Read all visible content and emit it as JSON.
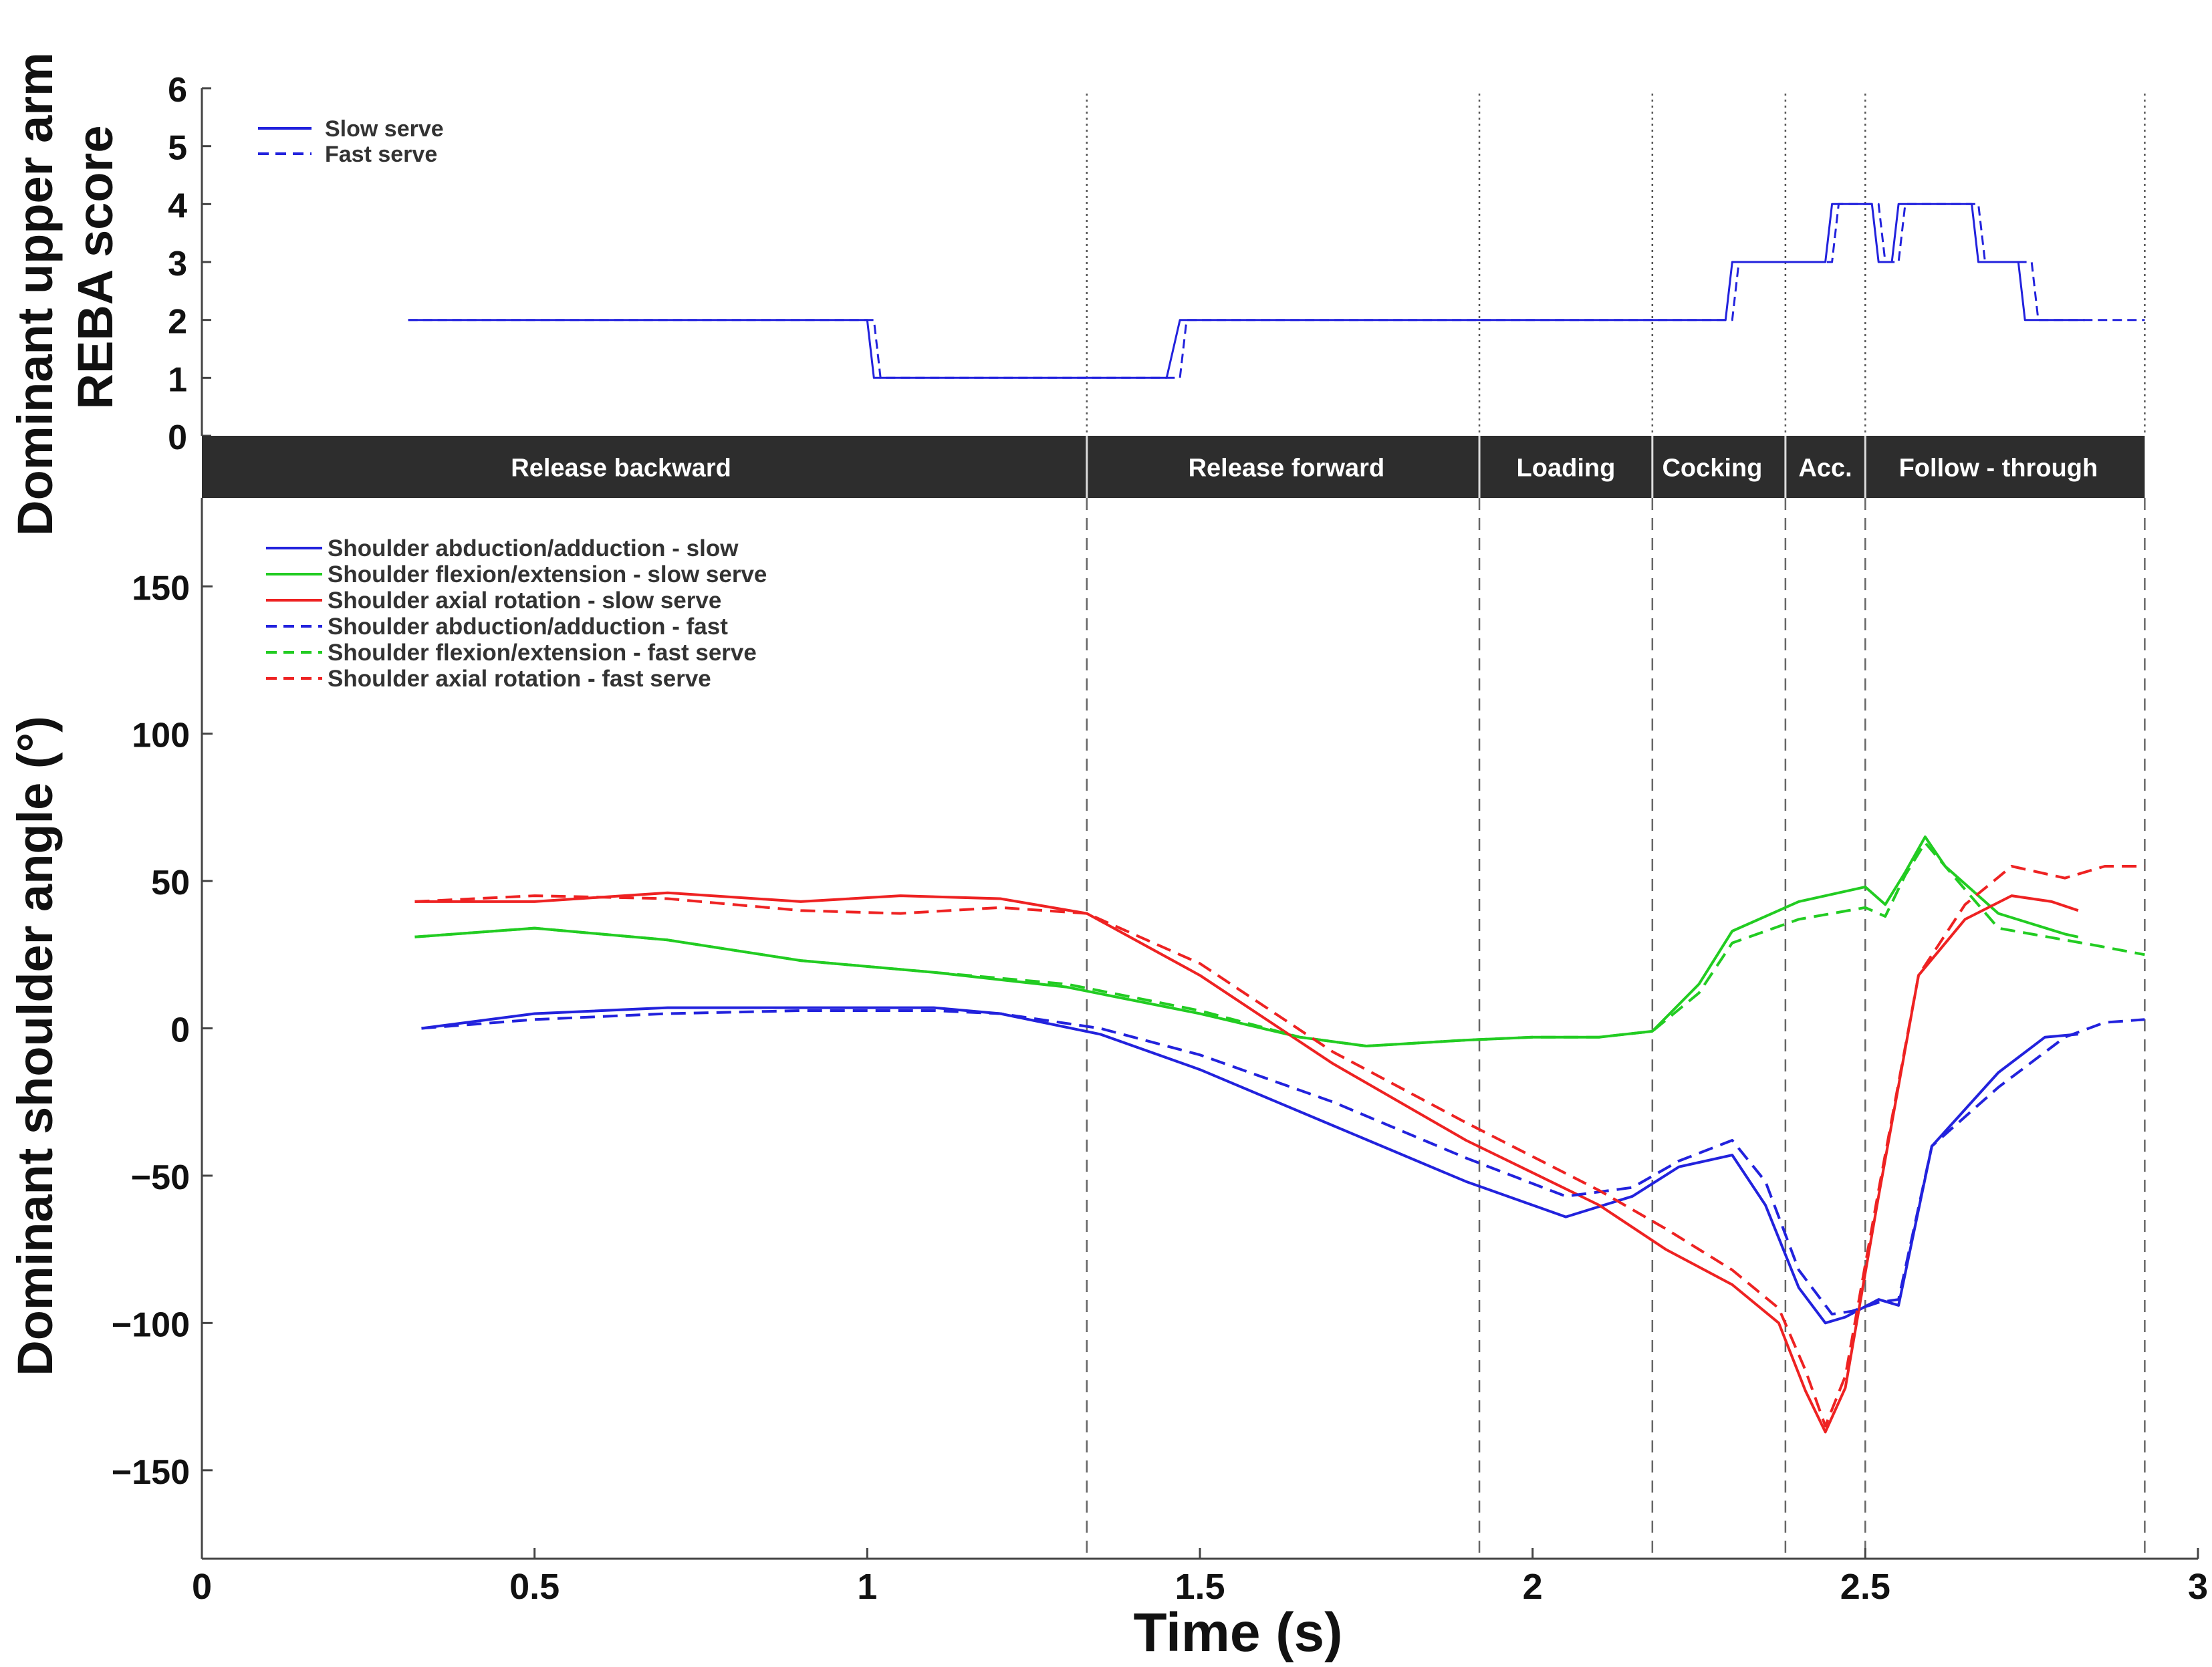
{
  "chart_data": [
    {
      "type": "line",
      "panel": "top",
      "ylabel_line1": "Dominant upper arm",
      "ylabel_line2": "REBA score",
      "ylim": [
        0,
        6
      ],
      "yticks": [
        "0",
        "1",
        "2",
        "3",
        "4",
        "5",
        "6"
      ],
      "series": [
        {
          "name": "Slow serve",
          "color": "#2222dd",
          "dash": false,
          "x": [
            0.31,
            1.0,
            1.01,
            1.03,
            1.45,
            1.47,
            2.29,
            2.3,
            2.44,
            2.45,
            2.51,
            2.52,
            2.54,
            2.55,
            2.66,
            2.67,
            2.73,
            2.74,
            2.83
          ],
          "y": [
            2,
            2,
            1,
            1,
            1,
            2,
            2,
            3,
            3,
            4,
            4,
            3,
            3,
            4,
            4,
            3,
            3,
            2,
            2
          ]
        },
        {
          "name": "Fast serve",
          "color": "#2222dd",
          "dash": true,
          "x": [
            0.31,
            1.01,
            1.02,
            1.04,
            1.47,
            1.48,
            2.3,
            2.31,
            2.45,
            2.46,
            2.52,
            2.53,
            2.55,
            2.56,
            2.67,
            2.68,
            2.75,
            2.76,
            2.92
          ],
          "y": [
            2,
            2,
            1,
            1,
            1,
            2,
            2,
            3,
            3,
            4,
            4,
            3,
            3,
            4,
            4,
            3,
            3,
            2,
            2
          ]
        }
      ]
    },
    {
      "type": "line",
      "panel": "bottom",
      "xlabel": "Time (s)",
      "ylabel": "Dominant shoulder angle   (°)",
      "xlim": [
        0,
        3
      ],
      "ylim": [
        -180,
        180
      ],
      "xticks": [
        "0",
        "0.5",
        "1",
        "1.5",
        "2",
        "2.5",
        "3"
      ],
      "yticks": [
        "150",
        "100",
        "50",
        "0",
        "−50",
        "−100",
        "−150"
      ],
      "series": [
        {
          "name": "Shoulder abduction/adduction - slow",
          "color": "#2222dd",
          "dash": false,
          "x": [
            0.33,
            0.5,
            0.7,
            0.9,
            1.1,
            1.2,
            1.35,
            1.5,
            1.7,
            1.9,
            2.05,
            2.15,
            2.22,
            2.3,
            2.35,
            2.4,
            2.44,
            2.47,
            2.52,
            2.55,
            2.6,
            2.7,
            2.77,
            2.82
          ],
          "y": [
            0,
            5,
            7,
            7,
            7,
            5,
            -2,
            -14,
            -33,
            -52,
            -64,
            -57,
            -47,
            -43,
            -60,
            -88,
            -100,
            -98,
            -92,
            -94,
            -40,
            -15,
            -3,
            -2
          ]
        },
        {
          "name": "Shoulder flexion/extension - slow serve",
          "color": "#22cc22",
          "dash": false,
          "x": [
            0.32,
            0.5,
            0.7,
            0.9,
            1.1,
            1.3,
            1.5,
            1.65,
            1.75,
            1.9,
            2.0,
            2.1,
            2.18,
            2.25,
            2.3,
            2.4,
            2.5,
            2.53,
            2.56,
            2.59,
            2.62,
            2.7,
            2.8,
            2.82
          ],
          "y": [
            31,
            34,
            30,
            23,
            19,
            14,
            5,
            -3,
            -6,
            -4,
            -3,
            -3,
            -1,
            15,
            33,
            43,
            48,
            42,
            53,
            65,
            55,
            39,
            32,
            31
          ]
        },
        {
          "name": "Shoulder axial rotation - slow serve",
          "color": "#ee2222",
          "dash": false,
          "x": [
            0.32,
            0.5,
            0.7,
            0.9,
            1.05,
            1.2,
            1.33,
            1.5,
            1.7,
            1.9,
            2.1,
            2.2,
            2.3,
            2.37,
            2.41,
            2.44,
            2.47,
            2.52,
            2.58,
            2.65,
            2.72,
            2.78,
            2.82
          ],
          "y": [
            43,
            43,
            46,
            43,
            45,
            44,
            39,
            18,
            -12,
            -38,
            -60,
            -75,
            -87,
            -100,
            -123,
            -137,
            -122,
            -57,
            18,
            37,
            45,
            43,
            40
          ]
        },
        {
          "name": "Shoulder abduction/adduction - fast",
          "color": "#2222dd",
          "dash": true,
          "x": [
            0.33,
            0.5,
            0.7,
            0.9,
            1.1,
            1.2,
            1.35,
            1.5,
            1.7,
            1.9,
            2.05,
            2.15,
            2.22,
            2.3,
            2.35,
            2.4,
            2.45,
            2.48,
            2.52,
            2.55,
            2.6,
            2.7,
            2.8,
            2.86,
            2.92
          ],
          "y": [
            0,
            3,
            5,
            6,
            6,
            5,
            0,
            -9,
            -25,
            -44,
            -57,
            -54,
            -45,
            -38,
            -52,
            -82,
            -97,
            -96,
            -93,
            -92,
            -40,
            -20,
            -3,
            2,
            3
          ]
        },
        {
          "name": "Shoulder flexion/extension - fast serve",
          "color": "#22cc22",
          "dash": true,
          "x": [
            0.32,
            0.5,
            0.7,
            0.9,
            1.1,
            1.3,
            1.5,
            1.65,
            1.75,
            1.9,
            2.0,
            2.1,
            2.18,
            2.25,
            2.3,
            2.4,
            2.5,
            2.53,
            2.56,
            2.59,
            2.62,
            2.7,
            2.85,
            2.92
          ],
          "y": [
            31,
            34,
            30,
            23,
            19,
            15,
            6,
            -3,
            -6,
            -4,
            -3,
            -3,
            -1,
            12,
            29,
            37,
            41,
            38,
            52,
            63,
            55,
            34,
            28,
            25
          ]
        },
        {
          "name": "Shoulder axial rotation - fast serve",
          "color": "#ee2222",
          "dash": true,
          "x": [
            0.32,
            0.5,
            0.7,
            0.9,
            1.05,
            1.2,
            1.33,
            1.5,
            1.7,
            1.9,
            2.1,
            2.2,
            2.3,
            2.37,
            2.41,
            2.44,
            2.47,
            2.52,
            2.58,
            2.65,
            2.72,
            2.8,
            2.86,
            2.92
          ],
          "y": [
            43,
            45,
            44,
            40,
            39,
            41,
            39,
            22,
            -8,
            -32,
            -55,
            -68,
            -82,
            -95,
            -116,
            -135,
            -118,
            -55,
            18,
            42,
            55,
            51,
            55,
            55
          ]
        }
      ]
    }
  ],
  "phases": {
    "boundaries": [
      1.33,
      1.92,
      2.18,
      2.38,
      2.5,
      2.92
    ],
    "labels": [
      {
        "text": "Release backward",
        "x": 0.63
      },
      {
        "text": "Release forward",
        "x": 1.63
      },
      {
        "text": "Loading",
        "x": 2.05
      },
      {
        "text": "Cocking",
        "x": 2.27
      },
      {
        "text": "Acc.",
        "x": 2.44
      },
      {
        "text": "Follow - through",
        "x": 2.7
      }
    ]
  },
  "top_legend": [
    "Slow serve",
    "Fast serve"
  ],
  "bottom_legend": [
    "Shoulder abduction/adduction - slow",
    "Shoulder flexion/extension - slow serve",
    "Shoulder axial rotation - slow serve",
    "Shoulder abduction/adduction - fast",
    "Shoulder flexion/extension - fast serve",
    "Shoulder axial rotation - fast serve"
  ]
}
